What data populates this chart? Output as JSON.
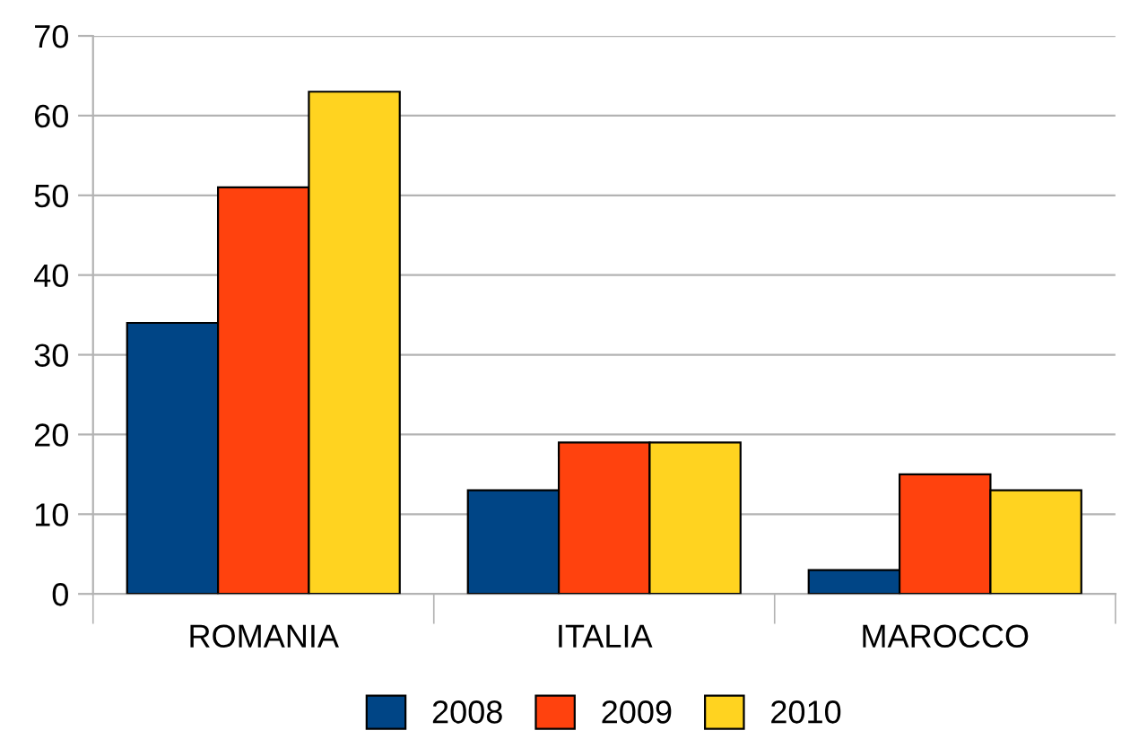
{
  "chart_data": {
    "type": "bar",
    "categories": [
      "ROMANIA",
      "ITALIA",
      "MAROCCO"
    ],
    "series": [
      {
        "name": "2008",
        "color": "#004586",
        "values": [
          34,
          13,
          3
        ]
      },
      {
        "name": "2009",
        "color": "#ff420e",
        "values": [
          51,
          19,
          15
        ]
      },
      {
        "name": "2010",
        "color": "#ffd320",
        "values": [
          63,
          19,
          13
        ]
      }
    ],
    "ylim": [
      0,
      70
    ],
    "yticks": [
      0,
      10,
      20,
      30,
      40,
      50,
      60,
      70
    ],
    "grid": "y",
    "legend": "bottom"
  }
}
